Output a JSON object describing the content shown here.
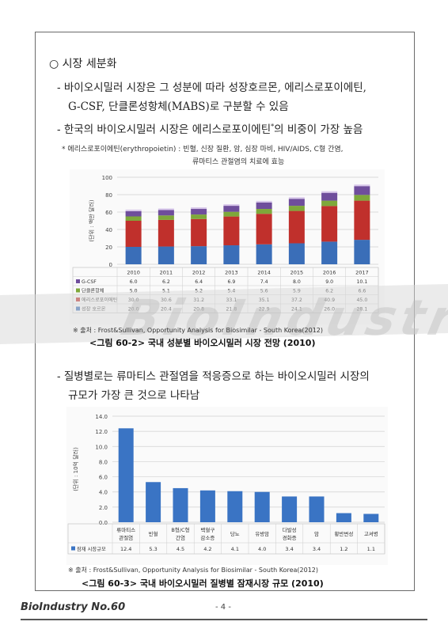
{
  "section": {
    "bullet": "○",
    "title": "시장 세분화"
  },
  "para1": {
    "dash": "-",
    "line1": "바이오시밀러 시장은 그 성분에 따라 성장호르몬, 에리스로포이에틴,",
    "line2": "G-CSF, 단클론성항체(MABS)로 구분할 수 있음"
  },
  "para2": {
    "dash": "-",
    "text_a": "한국의 바이오시밀러 시장은 에리스로포이에틴",
    "sup": "*",
    "text_b": "의 비중이 가장 높음"
  },
  "footnote": {
    "mark": "*",
    "line1": "에리스로포이에틴(erythropoietin) : 빈혈, 신장 질환, 암, 심장 마비, HIV/AIDS, C형 간염,",
    "line2": "류마티스 관절염의 치료에 효능"
  },
  "source1": "※ 출처 : Frost&Sullivan, Opportunity Analysis for Biosimilar - South Korea(2012)",
  "caption1": "<그림 60-2> 국내 성분별 바이오시밀러 시장 전망 (2010)",
  "para3": {
    "dash": "-",
    "line1": "질병별로는 류마티스 관절염을 적응증으로 하는 바이오시밀러 시장의",
    "line2": "규모가 가장 큰 것으로 나타남"
  },
  "source2": "※ 출처 : Frost&Sullivan, Opportunity Analysis for Biosimilar - South Korea(2012)",
  "caption2": "<그림 60-3> 국내 바이오시밀러 질병별 잠재시장 규모 (2010)",
  "footer": {
    "title": "BioIndustry No.60",
    "page": "- 4 -"
  },
  "watermark": "BioIndustry",
  "chart_data": [
    {
      "type": "bar",
      "stacked": true,
      "ylabel": "(단위 : 백만 달러)",
      "ylim": [
        0,
        100
      ],
      "yticks": [
        0,
        20,
        40,
        60,
        80,
        100
      ],
      "categories": [
        "2010",
        "2011",
        "2012",
        "2013",
        "2014",
        "2015",
        "2016",
        "2017"
      ],
      "series": [
        {
          "name": "성장 호르몬",
          "color": "#3a6eb8",
          "values": [
            20.0,
            20.4,
            20.8,
            21.8,
            22.9,
            24.1,
            26.0,
            28.1
          ]
        },
        {
          "name": "에리스로포이에틴",
          "color": "#c0302c",
          "values": [
            30.0,
            30.6,
            31.2,
            33.1,
            35.1,
            37.2,
            40.9,
            45.0
          ]
        },
        {
          "name": "단클론항체",
          "color": "#7ea83a",
          "values": [
            5.0,
            5.1,
            5.2,
            5.4,
            5.6,
            5.9,
            6.2,
            6.6
          ]
        },
        {
          "name": "G-CSF",
          "color": "#6f4e9c",
          "values": [
            6.0,
            6.2,
            6.4,
            6.9,
            7.4,
            8.0,
            9.0,
            10.1
          ]
        }
      ],
      "table_display": [
        {
          "series": "G-CSF",
          "values": [
            "6.0",
            "6.2",
            "6.4",
            "6.9",
            "7.4",
            "8.0",
            "9.0",
            "10.1"
          ]
        },
        {
          "series": "단클론항체",
          "values": [
            "5.0",
            "5.1",
            "5.2",
            "5.4",
            "5.6",
            "5.9",
            "6.2",
            "6.6"
          ]
        },
        {
          "series": "에리스로포이에틴",
          "values": [
            "30.0",
            "30.6",
            "31.2",
            "33.1",
            "35.1",
            "37.2",
            "40.9",
            "45.0"
          ]
        },
        {
          "series": "성장 호르몬",
          "values": [
            "20.0",
            "20.4",
            "20.8",
            "21.8",
            "22.9",
            "24.1",
            "26.0",
            "28.1"
          ]
        }
      ],
      "grid": true
    },
    {
      "type": "bar",
      "ylabel": "(단위 : 10억 달러)",
      "ylim": [
        0,
        14
      ],
      "yticks": [
        "0.0",
        "2.0",
        "4.0",
        "6.0",
        "8.0",
        "10.0",
        "12.0",
        "14.0"
      ],
      "categories": [
        [
          "류마티스",
          "관절염"
        ],
        [
          "빈혈"
        ],
        [
          "B형/C형",
          "간염"
        ],
        [
          "백혈구",
          "감소증"
        ],
        [
          "당뇨"
        ],
        [
          "유방암"
        ],
        [
          "다발성",
          "경화증"
        ],
        [
          "암"
        ],
        [
          "황반변성"
        ],
        [
          "고셔병"
        ]
      ],
      "series": [
        {
          "name": "잠재 시장규모",
          "color": "#3a74c4",
          "values": [
            12.4,
            5.3,
            4.5,
            4.2,
            4.1,
            4.0,
            3.4,
            3.4,
            1.2,
            1.1
          ]
        }
      ],
      "value_labels": [
        "12.4",
        "5.3",
        "4.5",
        "4.2",
        "4.1",
        "4.0",
        "3.4",
        "3.4",
        "1.2",
        "1.1"
      ],
      "grid": true
    }
  ]
}
